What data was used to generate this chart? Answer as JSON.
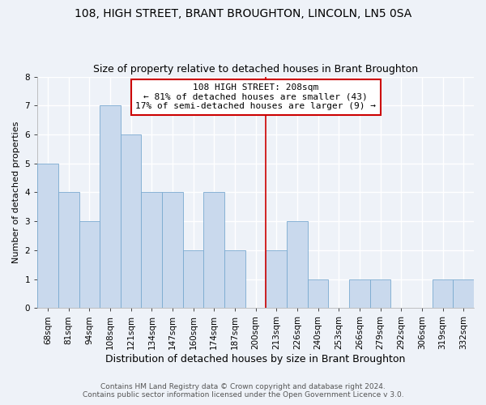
{
  "title": "108, HIGH STREET, BRANT BROUGHTON, LINCOLN, LN5 0SA",
  "subtitle": "Size of property relative to detached houses in Brant Broughton",
  "xlabel": "Distribution of detached houses by size in Brant Broughton",
  "ylabel": "Number of detached properties",
  "categories": [
    "68sqm",
    "81sqm",
    "94sqm",
    "108sqm",
    "121sqm",
    "134sqm",
    "147sqm",
    "160sqm",
    "174sqm",
    "187sqm",
    "200sqm",
    "213sqm",
    "226sqm",
    "240sqm",
    "253sqm",
    "266sqm",
    "279sqm",
    "292sqm",
    "306sqm",
    "319sqm",
    "332sqm"
  ],
  "values": [
    5,
    4,
    3,
    7,
    6,
    4,
    4,
    2,
    4,
    2,
    0,
    2,
    3,
    1,
    0,
    1,
    1,
    0,
    0,
    1,
    1
  ],
  "bar_color": "#c9d9ed",
  "bar_edge_color": "#7aaad0",
  "reference_line_x": 10.5,
  "reference_line_color": "#cc0000",
  "annotation_title": "108 HIGH STREET: 208sqm",
  "annotation_line1": "← 81% of detached houses are smaller (43)",
  "annotation_line2": "17% of semi-detached houses are larger (9) →",
  "annotation_box_color": "#cc0000",
  "ylim": [
    0,
    8
  ],
  "yticks": [
    0,
    1,
    2,
    3,
    4,
    5,
    6,
    7,
    8
  ],
  "footer_line1": "Contains HM Land Registry data © Crown copyright and database right 2024.",
  "footer_line2": "Contains public sector information licensed under the Open Government Licence v 3.0.",
  "title_fontsize": 10,
  "subtitle_fontsize": 9,
  "xlabel_fontsize": 9,
  "ylabel_fontsize": 8,
  "tick_fontsize": 7.5,
  "annotation_fontsize": 8,
  "footer_fontsize": 6.5,
  "background_color": "#eef2f8"
}
